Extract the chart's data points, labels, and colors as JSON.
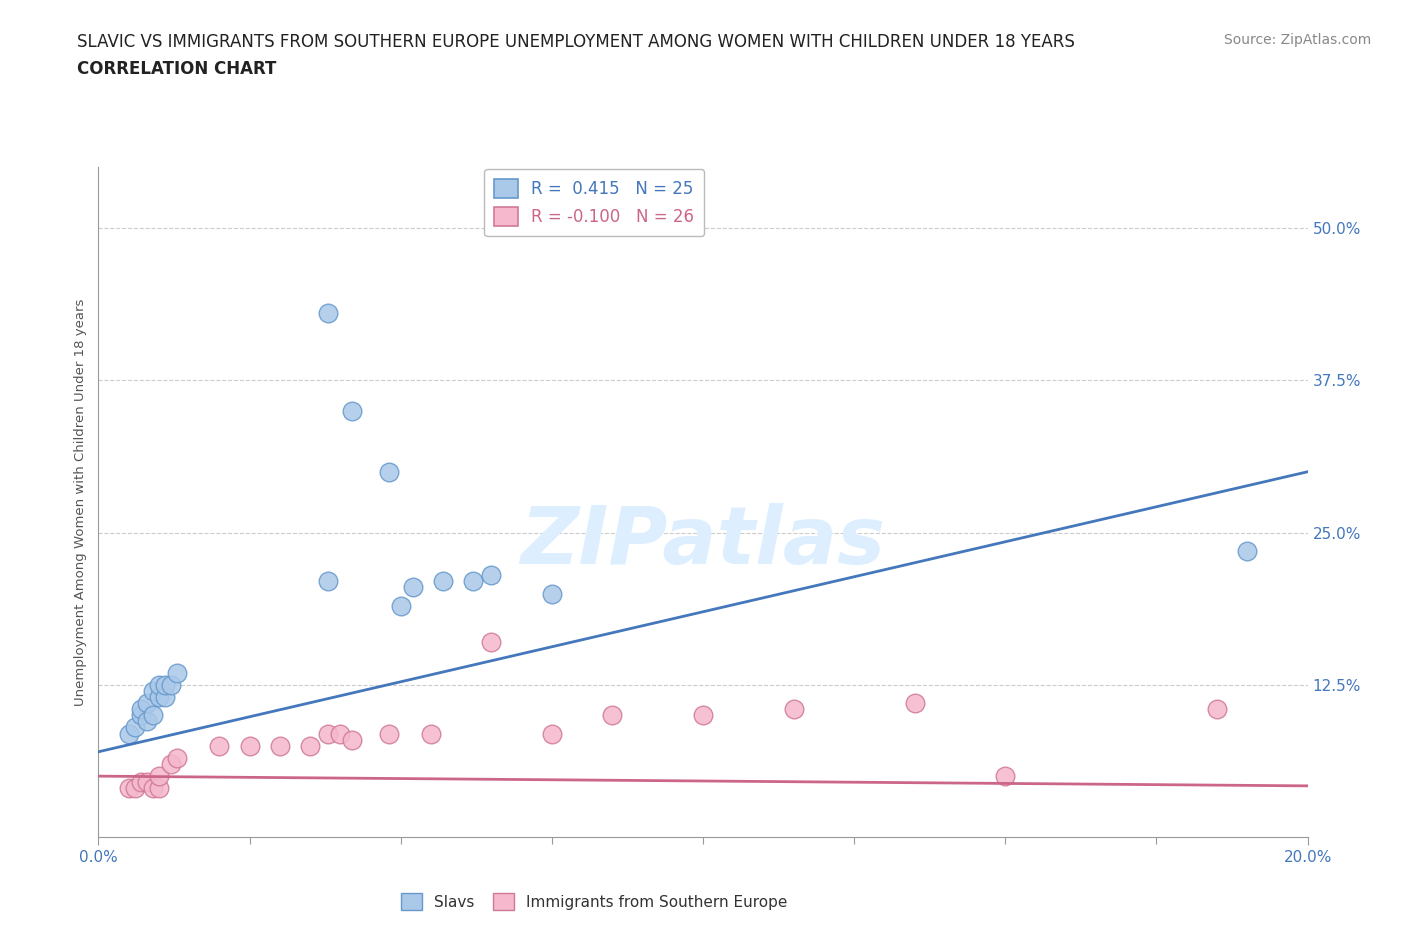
{
  "title_line1": "SLAVIC VS IMMIGRANTS FROM SOUTHERN EUROPE UNEMPLOYMENT AMONG WOMEN WITH CHILDREN UNDER 18 YEARS",
  "title_line2": "CORRELATION CHART",
  "source_text": "Source: ZipAtlas.com",
  "ylabel": "Unemployment Among Women with Children Under 18 years",
  "xlim": [
    0.0,
    0.2
  ],
  "ylim": [
    0.0,
    0.55
  ],
  "xtick_labels": [
    "0.0%",
    "20.0%"
  ],
  "ytick_labels": [
    "12.5%",
    "25.0%",
    "37.5%",
    "50.0%"
  ],
  "ytick_values": [
    0.125,
    0.25,
    0.375,
    0.5
  ],
  "legend_entries": [
    {
      "label": "R =  0.415   N = 25"
    },
    {
      "label": "R = -0.100   N = 26"
    }
  ],
  "slavs_color": "#aac8e8",
  "slavs_edge_color": "#6699cc",
  "immigrants_color": "#f5b8cc",
  "immigrants_edge_color": "#d07898",
  "regression_slavs_color": "#4477bb",
  "regression_immigrants_color": "#cc6688",
  "watermark": "ZIPatlas",
  "watermark_color": "#ddeeff",
  "regression_slavs_x0": 0.0,
  "regression_slavs_y0": 0.07,
  "regression_slavs_x1": 0.2,
  "regression_slavs_y1": 0.3,
  "regression_imm_x0": 0.0,
  "regression_imm_y0": 0.05,
  "regression_imm_x1": 0.2,
  "regression_imm_y1": 0.042,
  "slavs_x": [
    0.005,
    0.006,
    0.007,
    0.007,
    0.008,
    0.008,
    0.009,
    0.009,
    0.01,
    0.01,
    0.011,
    0.011,
    0.012,
    0.013,
    0.038,
    0.042,
    0.048,
    0.052,
    0.057,
    0.062,
    0.065,
    0.19,
    0.038,
    0.05,
    0.075
  ],
  "slavs_y": [
    0.085,
    0.09,
    0.1,
    0.105,
    0.095,
    0.11,
    0.1,
    0.12,
    0.115,
    0.125,
    0.115,
    0.125,
    0.125,
    0.135,
    0.43,
    0.35,
    0.3,
    0.205,
    0.21,
    0.21,
    0.215,
    0.235,
    0.21,
    0.19,
    0.2
  ],
  "immigrants_x": [
    0.005,
    0.006,
    0.007,
    0.008,
    0.009,
    0.01,
    0.01,
    0.012,
    0.013,
    0.02,
    0.025,
    0.03,
    0.035,
    0.038,
    0.04,
    0.042,
    0.048,
    0.055,
    0.065,
    0.075,
    0.085,
    0.1,
    0.115,
    0.135,
    0.15,
    0.185
  ],
  "immigrants_y": [
    0.04,
    0.04,
    0.045,
    0.045,
    0.04,
    0.04,
    0.05,
    0.06,
    0.065,
    0.075,
    0.075,
    0.075,
    0.075,
    0.085,
    0.085,
    0.08,
    0.085,
    0.085,
    0.16,
    0.085,
    0.1,
    0.1,
    0.105,
    0.11,
    0.05,
    0.105
  ]
}
